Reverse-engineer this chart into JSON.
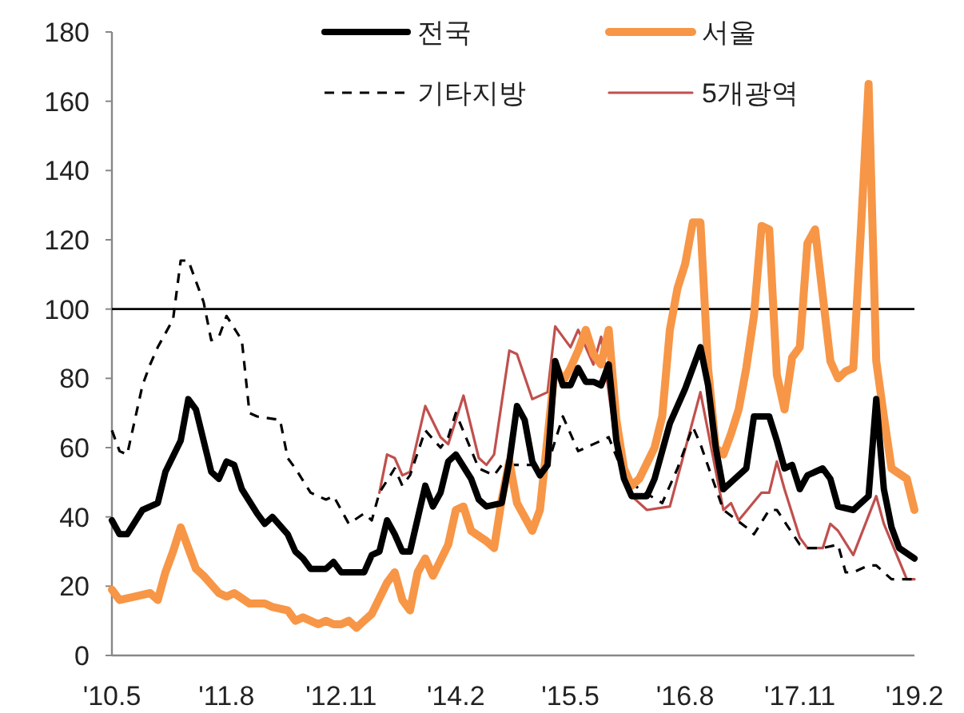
{
  "chart_data": {
    "type": "line",
    "xlim": [
      "2010-05",
      "2019-02"
    ],
    "ylim": [
      0,
      180
    ],
    "xticks": [
      {
        "value": "2010-05",
        "label": "'10.5"
      },
      {
        "value": "2011-08",
        "label": "'11.8"
      },
      {
        "value": "2012-11",
        "label": "'12.11"
      },
      {
        "value": "2014-02",
        "label": "'14.2"
      },
      {
        "value": "2015-05",
        "label": "'15.5"
      },
      {
        "value": "2016-08",
        "label": "'16.8"
      },
      {
        "value": "2017-11",
        "label": "'17.11"
      },
      {
        "value": "2019-02",
        "label": "'19.2"
      }
    ],
    "yticks": [
      0,
      20,
      40,
      60,
      80,
      100,
      120,
      140,
      160,
      180
    ],
    "legend": "top",
    "grid": false,
    "ref_lines": [
      {
        "axis": "y",
        "value": 100,
        "color": "#000000",
        "line_style": "solid"
      }
    ],
    "series": [
      {
        "name": "전국",
        "color": "#000000",
        "line_style": "solid",
        "x": [
          "2010-05",
          "2010-06",
          "2010-07",
          "2010-09",
          "2010-11",
          "2010-12",
          "2011-02",
          "2011-03",
          "2011-04",
          "2011-05",
          "2011-06",
          "2011-07",
          "2011-08",
          "2011-09",
          "2011-10",
          "2011-12",
          "2012-01",
          "2012-02",
          "2012-04",
          "2012-05",
          "2012-06",
          "2012-07",
          "2012-09",
          "2012-10",
          "2012-11",
          "2012-12",
          "2013-02",
          "2013-03",
          "2013-04",
          "2013-05",
          "2013-06",
          "2013-07",
          "2013-08",
          "2013-10",
          "2013-11",
          "2013-12",
          "2014-01",
          "2014-02",
          "2014-04",
          "2014-05",
          "2014-06",
          "2014-08",
          "2014-09",
          "2014-10",
          "2014-11",
          "2014-12",
          "2015-01",
          "2015-02",
          "2015-03",
          "2015-04",
          "2015-05",
          "2015-06",
          "2015-07",
          "2015-08",
          "2015-09",
          "2015-10",
          "2015-11",
          "2015-12",
          "2016-01",
          "2016-03",
          "2016-04",
          "2016-06",
          "2016-08",
          "2016-10",
          "2016-11",
          "2016-12",
          "2017-01",
          "2017-02",
          "2017-04",
          "2017-05",
          "2017-07",
          "2017-08",
          "2017-09",
          "2017-10",
          "2017-11",
          "2017-12",
          "2018-02",
          "2018-03",
          "2018-04",
          "2018-06",
          "2018-08",
          "2018-09",
          "2018-10",
          "2018-11",
          "2018-12",
          "2019-02"
        ],
        "values": [
          39,
          35,
          35,
          42,
          44,
          53,
          62,
          74,
          71,
          62,
          53,
          51,
          56,
          55,
          48,
          41,
          38,
          40,
          35,
          30,
          28,
          25,
          25,
          27,
          24,
          24,
          24,
          29,
          30,
          39,
          35,
          30,
          30,
          49,
          43,
          47,
          56,
          58,
          51,
          45,
          43,
          44,
          56,
          72,
          68,
          56,
          52,
          55,
          85,
          78,
          78,
          83,
          79,
          79,
          78,
          84,
          62,
          51,
          46,
          46,
          51,
          67,
          77,
          89,
          78,
          60,
          48,
          50,
          54,
          69,
          69,
          62,
          54,
          55,
          48,
          52,
          54,
          51,
          43,
          42,
          46,
          74,
          48,
          37,
          31,
          28
        ]
      },
      {
        "name": "서울",
        "color": "#f79646",
        "line_style": "solid",
        "x": [
          "2010-05",
          "2010-06",
          "2010-08",
          "2010-10",
          "2010-11",
          "2010-12",
          "2011-01",
          "2011-02",
          "2011-04",
          "2011-05",
          "2011-07",
          "2011-08",
          "2011-09",
          "2011-11",
          "2011-12",
          "2012-01",
          "2012-02",
          "2012-04",
          "2012-05",
          "2012-06",
          "2012-08",
          "2012-09",
          "2012-10",
          "2012-11",
          "2012-12",
          "2013-01",
          "2013-02",
          "2013-03",
          "2013-05",
          "2013-06",
          "2013-07",
          "2013-08",
          "2013-09",
          "2013-10",
          "2013-11",
          "2014-01",
          "2014-02",
          "2014-03",
          "2014-04",
          "2014-06",
          "2014-07",
          "2014-08",
          "2014-09",
          "2014-10",
          "2014-12",
          "2015-01",
          "2015-03",
          "2015-04",
          "2015-05",
          "2015-06",
          "2015-07",
          "2015-08",
          "2015-09",
          "2015-10",
          "2015-11",
          "2015-12",
          "2016-01",
          "2016-02",
          "2016-04",
          "2016-05",
          "2016-06",
          "2016-07",
          "2016-08",
          "2016-09",
          "2016-10",
          "2016-11",
          "2016-12",
          "2017-01",
          "2017-02",
          "2017-03",
          "2017-04",
          "2017-05",
          "2017-06",
          "2017-07",
          "2017-08",
          "2017-09",
          "2017-10",
          "2017-11",
          "2017-12",
          "2018-01",
          "2018-03",
          "2018-04",
          "2018-05",
          "2018-06",
          "2018-07",
          "2018-08",
          "2018-09",
          "2018-10",
          "2018-11",
          "2019-01",
          "2019-02"
        ],
        "values": [
          19,
          16,
          17,
          18,
          16,
          24,
          30,
          37,
          25,
          23,
          18,
          17,
          18,
          15,
          15,
          15,
          14,
          13,
          10,
          11,
          9,
          10,
          9,
          9,
          10,
          8,
          10,
          12,
          21,
          24,
          16,
          13,
          24,
          28,
          23,
          32,
          42,
          43,
          36,
          33,
          31,
          45,
          56,
          44,
          36,
          42,
          84,
          79,
          83,
          88,
          94,
          87,
          84,
          94,
          68,
          54,
          49,
          51,
          60,
          69,
          94,
          106,
          113,
          125,
          125,
          83,
          60,
          58,
          64,
          71,
          83,
          98,
          124,
          123,
          81,
          71,
          86,
          89,
          119,
          123,
          85,
          80,
          82,
          83,
          123,
          165,
          85,
          69,
          54,
          51,
          42
        ]
      },
      {
        "name": "기타지방",
        "color": "#000000",
        "line_style": "dashed",
        "x": [
          "2010-05",
          "2010-06",
          "2010-07",
          "2010-09",
          "2010-10",
          "2010-11",
          "2011-01",
          "2011-02",
          "2011-03",
          "2011-05",
          "2011-06",
          "2011-07",
          "2011-08",
          "2011-10",
          "2011-11",
          "2011-12",
          "2012-03",
          "2012-04",
          "2012-05",
          "2012-07",
          "2012-09",
          "2012-10",
          "2012-12",
          "2013-02",
          "2013-03",
          "2013-04",
          "2013-06",
          "2013-07",
          "2013-08",
          "2013-10",
          "2013-12",
          "2014-01",
          "2014-02",
          "2014-05",
          "2014-07",
          "2014-08",
          "2014-12",
          "2015-02",
          "2015-04",
          "2015-06",
          "2015-08",
          "2015-10",
          "2015-12",
          "2016-02",
          "2016-05",
          "2016-07",
          "2016-09",
          "2016-10",
          "2017-01",
          "2017-04",
          "2017-05",
          "2017-07",
          "2017-08",
          "2017-11",
          "2017-12",
          "2018-02",
          "2018-04",
          "2018-05",
          "2018-06",
          "2018-08",
          "2018-09",
          "2018-11",
          "2019-01",
          "2019-02"
        ],
        "values": [
          65,
          59,
          58,
          78,
          84,
          89,
          97,
          114,
          114,
          102,
          91,
          92,
          98,
          91,
          70,
          69,
          68,
          57,
          54,
          47,
          45,
          46,
          38,
          41,
          39,
          47,
          54,
          49,
          52,
          65,
          60,
          63,
          70,
          54,
          52,
          55,
          55,
          55,
          69,
          59,
          61,
          63,
          52,
          48,
          44,
          54,
          66,
          61,
          42,
          37,
          35,
          42,
          42,
          32,
          31,
          31,
          32,
          24,
          24,
          26,
          26,
          22,
          22,
          22
        ]
      },
      {
        "name": "5개광역",
        "color": "#c0504d",
        "line_style": "solid",
        "x": [
          "2013-04",
          "2013-05",
          "2013-06",
          "2013-07",
          "2013-08",
          "2013-10",
          "2013-12",
          "2014-01",
          "2014-03",
          "2014-05",
          "2014-06",
          "2014-07",
          "2014-09",
          "2014-10",
          "2014-12",
          "2015-02",
          "2015-03",
          "2015-05",
          "2015-06",
          "2015-08",
          "2015-09",
          "2015-11",
          "2016-01",
          "2016-03",
          "2016-06",
          "2016-10",
          "2017-01",
          "2017-02",
          "2017-03",
          "2017-06",
          "2017-07",
          "2017-08",
          "2017-09",
          "2017-11",
          "2017-12",
          "2018-02",
          "2018-03",
          "2018-04",
          "2018-06",
          "2018-09",
          "2018-10",
          "2019-01",
          "2019-02"
        ],
        "values": [
          47,
          58,
          57,
          52,
          53,
          72,
          63,
          61,
          75,
          57,
          55,
          58,
          88,
          87,
          74,
          76,
          95,
          89,
          94,
          84,
          92,
          60,
          46,
          42,
          43,
          76,
          42,
          44,
          39,
          47,
          47,
          56,
          48,
          34,
          31,
          31,
          38,
          36,
          29,
          46,
          38,
          22,
          22
        ]
      }
    ]
  }
}
